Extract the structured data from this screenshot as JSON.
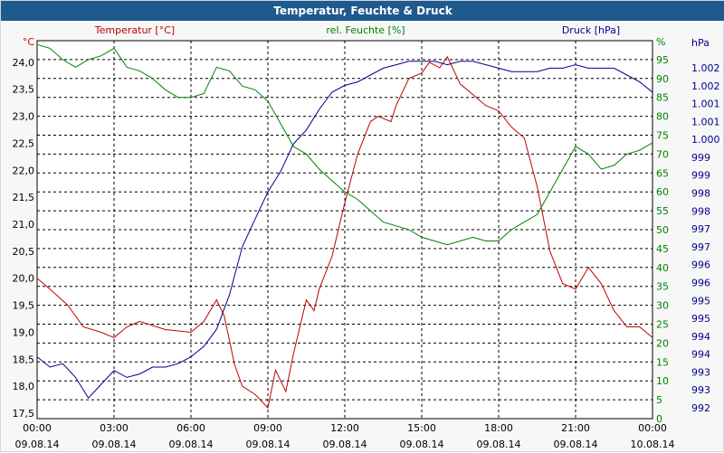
{
  "window": {
    "title": "Temperatur, Feuchte & Druck"
  },
  "chart_data": {
    "type": "line",
    "title": "Temperatur, Feuchte & Druck",
    "grid": true,
    "legend": "top",
    "x_ticks": [
      {
        "time": "00:00",
        "date": "09.08.14"
      },
      {
        "time": "03:00",
        "date": "09.08.14"
      },
      {
        "time": "06:00",
        "date": "09.08.14"
      },
      {
        "time": "09:00",
        "date": "09.08.14"
      },
      {
        "time": "12:00",
        "date": "09.08.14"
      },
      {
        "time": "15:00",
        "date": "09.08.14"
      },
      {
        "time": "18:00",
        "date": "09.08.14"
      },
      {
        "time": "21:00",
        "date": "09.08.14"
      },
      {
        "time": "00:00",
        "date": "10.08.14"
      }
    ],
    "axes": {
      "temperature": {
        "label": "Temperatur [°C]",
        "unit": "°C",
        "color": "#c00000",
        "range": [
          17.4,
          24.4
        ],
        "ticks": [
          "17,5",
          "18,0",
          "18,5",
          "19,0",
          "19,5",
          "20,0",
          "20,5",
          "21,0",
          "21,5",
          "22,0",
          "22,5",
          "23,0",
          "23,5",
          "24,0"
        ]
      },
      "humidity": {
        "label": "rel. Feuchte [%]",
        "unit": "%",
        "color": "#008000",
        "range": [
          0,
          100
        ],
        "ticks": [
          "0",
          "5",
          "10",
          "15",
          "20",
          "25",
          "30",
          "35",
          "40",
          "45",
          "50",
          "55",
          "60",
          "65",
          "70",
          "75",
          "80",
          "85",
          "90",
          "95"
        ]
      },
      "pressure": {
        "label": "Druck [hPa]",
        "unit": "hPa",
        "color": "#00008b",
        "range": [
          992,
          1003
        ],
        "ticks": [
          "992",
          "993",
          "993",
          "994",
          "994",
          "995",
          "995",
          "996",
          "996",
          "997",
          "997",
          "998",
          "998",
          "999",
          "999",
          "1.000",
          "1.001",
          "1.001",
          "1.002",
          "1.002"
        ]
      }
    },
    "series": [
      {
        "name": "Temperatur [°C]",
        "axis": "temperature",
        "color": "#c00000",
        "x_hours": [
          0,
          0.5,
          1.2,
          1.8,
          2.5,
          3,
          3.5,
          4,
          5,
          6,
          6.5,
          7,
          7.3,
          7.7,
          8,
          8.5,
          9,
          9.3,
          9.7,
          10,
          10.5,
          10.8,
          11,
          11.5,
          12,
          12.5,
          13,
          13.3,
          13.8,
          14,
          14.5,
          15,
          15.3,
          15.7,
          16,
          16.5,
          17,
          17.5,
          18,
          18.5,
          19,
          19.5,
          20,
          20.5,
          21,
          21.5,
          22,
          22.5,
          23,
          23.5,
          24
        ],
        "values": [
          20.0,
          19.8,
          19.5,
          19.1,
          19.0,
          18.9,
          19.1,
          19.2,
          19.05,
          19.0,
          19.2,
          19.6,
          19.3,
          18.4,
          18.0,
          17.85,
          17.6,
          18.3,
          17.9,
          18.6,
          19.6,
          19.4,
          19.8,
          20.4,
          21.4,
          22.3,
          22.9,
          23.0,
          22.9,
          23.2,
          23.7,
          23.8,
          24.0,
          23.9,
          24.1,
          23.6,
          23.4,
          23.2,
          23.1,
          22.8,
          22.6,
          21.7,
          20.5,
          19.9,
          19.8,
          20.2,
          19.9,
          19.4,
          19.1,
          19.1,
          18.9
        ]
      },
      {
        "name": "rel. Feuchte [%]",
        "axis": "humidity",
        "color": "#008000",
        "x_hours": [
          0,
          0.5,
          1,
          1.5,
          2,
          2.5,
          3,
          3.5,
          4,
          4.5,
          5,
          5.5,
          6,
          6.5,
          7,
          7.5,
          8,
          8.5,
          9,
          9.5,
          10,
          10.5,
          11,
          11.5,
          12,
          12.5,
          13,
          13.5,
          14,
          14.5,
          15,
          15.5,
          16,
          16.5,
          17,
          17.5,
          18,
          18.5,
          19,
          19.5,
          20,
          20.5,
          21,
          21.5,
          22,
          22.5,
          23,
          23.5,
          24
        ],
        "values": [
          99,
          98,
          95,
          93,
          95,
          96,
          98,
          93,
          92,
          90,
          87,
          85,
          85,
          86,
          93,
          92,
          88,
          87,
          84,
          78,
          72,
          70,
          66,
          63,
          60,
          58,
          55,
          52,
          51,
          50,
          48,
          47,
          46,
          47,
          48,
          47,
          47,
          50,
          52,
          54,
          60,
          66,
          72,
          70,
          66,
          67,
          70,
          71,
          73
        ]
      },
      {
        "name": "Druck [hPa]",
        "axis": "pressure",
        "color": "#00008b",
        "x_hours": [
          0,
          0.5,
          1,
          1.5,
          2,
          2.5,
          3,
          3.5,
          4,
          4.5,
          5,
          5.5,
          6,
          6.5,
          7,
          7.5,
          8,
          8.5,
          9,
          9.5,
          10,
          10.5,
          11,
          11.5,
          12,
          12.5,
          13,
          13.5,
          14,
          14.5,
          15,
          15.5,
          16,
          16.5,
          17,
          17.5,
          18,
          18.5,
          19,
          19.5,
          20,
          20.5,
          21,
          21.5,
          22,
          22.5,
          23,
          23.5,
          24
        ],
        "values": [
          993.8,
          993.5,
          993.6,
          993.2,
          992.6,
          993.0,
          993.4,
          993.2,
          993.3,
          993.5,
          993.5,
          993.6,
          993.8,
          994.1,
          994.6,
          995.6,
          997.0,
          997.8,
          998.6,
          999.2,
          1000.0,
          1000.4,
          1001.0,
          1001.5,
          1001.7,
          1001.8,
          1002.0,
          1002.2,
          1002.3,
          1002.4,
          1002.4,
          1002.4,
          1002.3,
          1002.4,
          1002.4,
          1002.3,
          1002.2,
          1002.1,
          1002.1,
          1002.1,
          1002.2,
          1002.2,
          1002.3,
          1002.2,
          1002.2,
          1002.2,
          1002.0,
          1001.8,
          1001.5
        ]
      }
    ]
  }
}
